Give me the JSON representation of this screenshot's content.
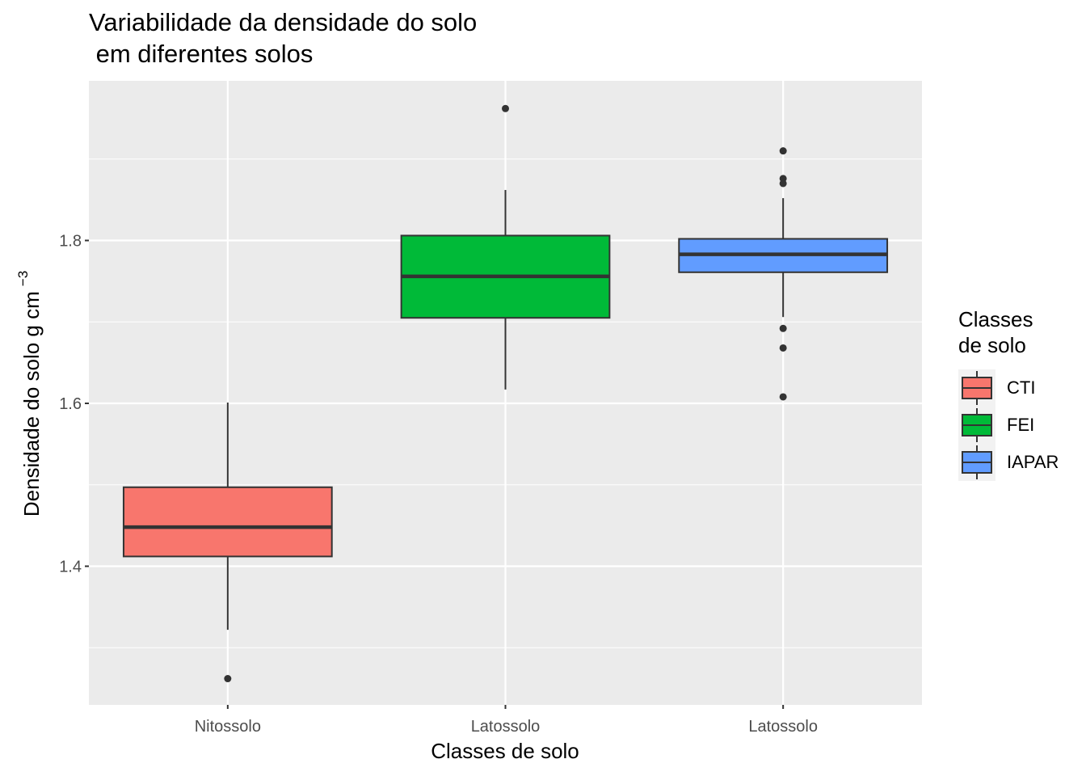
{
  "chart_data": {
    "type": "boxplot",
    "title_lines": [
      "Variabilidade da densidade do solo",
      " em diferentes solos"
    ],
    "xlabel": "Classes de solo",
    "ylabel": "Densidade do solo g cm",
    "ylabel_superscript": "−3",
    "categories": [
      "Nitossolo",
      "Latossolo",
      "Latossolo"
    ],
    "ylim": [
      1.23,
      1.98
    ],
    "y_ticks": [
      1.4,
      1.6,
      1.8
    ],
    "y_tick_labels": [
      "1.4",
      "1.6",
      "1.8"
    ],
    "y_minor_gridlines": [
      1.3,
      1.5,
      1.7,
      1.9
    ],
    "grid": true,
    "legend_placement": "right",
    "legend_title_lines": [
      "Classes",
      "de solo"
    ],
    "series": [
      {
        "name": "CTI",
        "category": "Nitossolo",
        "color": "#F8766D",
        "whisker_low": 1.322,
        "q1": 1.412,
        "median": 1.448,
        "q3": 1.497,
        "whisker_high": 1.601,
        "outliers": [
          1.262
        ]
      },
      {
        "name": "FEI",
        "category": "Latossolo",
        "color": "#00BA38",
        "whisker_low": 1.617,
        "q1": 1.705,
        "median": 1.756,
        "q3": 1.806,
        "whisker_high": 1.862,
        "outliers": [
          1.962
        ]
      },
      {
        "name": "IAPAR",
        "category": "Latossolo",
        "color": "#619CFF",
        "whisker_low": 1.706,
        "q1": 1.761,
        "median": 1.783,
        "q3": 1.802,
        "whisker_high": 1.852,
        "outliers": [
          1.91,
          1.876,
          1.87,
          1.692,
          1.668,
          1.608
        ]
      }
    ],
    "panel_background": "#EBEBEB",
    "gridline_color": "#FFFFFF",
    "box_line_color": "#333333"
  }
}
